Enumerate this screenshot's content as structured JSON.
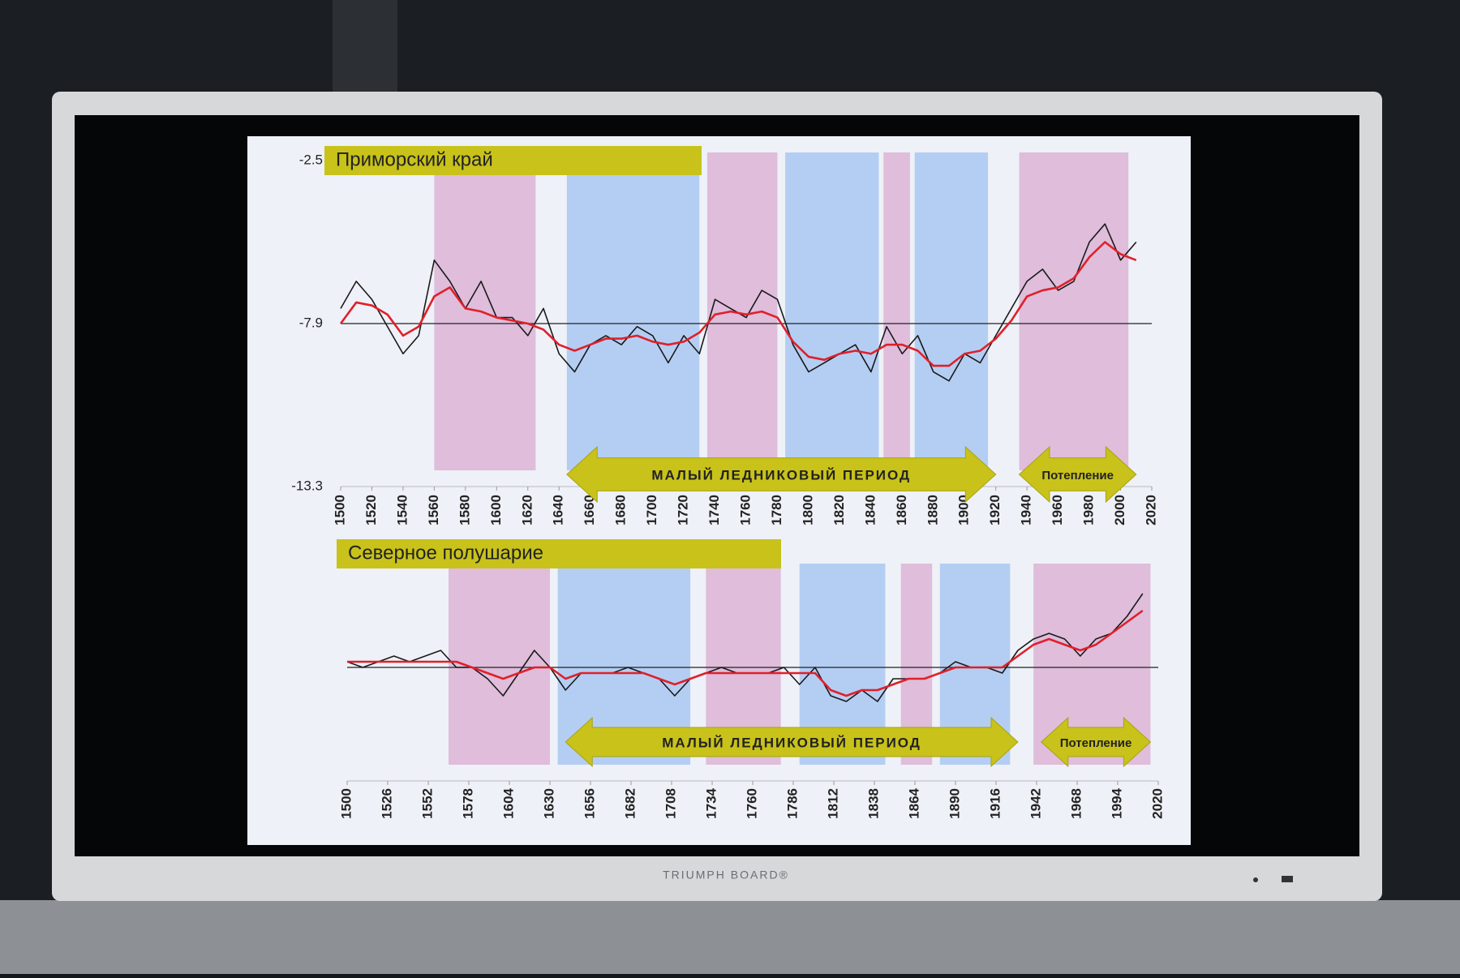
{
  "chart_data": [
    {
      "type": "line",
      "title": "Приморский край",
      "x": [
        1500,
        1510,
        1520,
        1530,
        1540,
        1550,
        1560,
        1570,
        1580,
        1590,
        1600,
        1610,
        1620,
        1630,
        1640,
        1650,
        1660,
        1670,
        1680,
        1690,
        1700,
        1710,
        1720,
        1730,
        1740,
        1750,
        1760,
        1770,
        1780,
        1790,
        1800,
        1810,
        1820,
        1830,
        1840,
        1850,
        1860,
        1870,
        1880,
        1890,
        1900,
        1910,
        1920,
        1930,
        1940,
        1950,
        1960,
        1970,
        1980,
        1990,
        2000,
        2010
      ],
      "series": [
        {
          "color": "#1a1a1a",
          "values": [
            -7.4,
            -6.5,
            -7.1,
            -8.0,
            -8.9,
            -8.3,
            -5.8,
            -6.5,
            -7.4,
            -6.5,
            -7.7,
            -7.7,
            -8.3,
            -7.4,
            -8.9,
            -9.5,
            -8.6,
            -8.3,
            -8.6,
            -8.0,
            -8.3,
            -9.2,
            -8.3,
            -8.9,
            -7.1,
            -7.4,
            -7.7,
            -6.8,
            -7.1,
            -8.6,
            -9.5,
            -9.2,
            -8.9,
            -8.6,
            -9.5,
            -8.0,
            -8.9,
            -8.3,
            -9.5,
            -9.8,
            -8.9,
            -9.2,
            -8.3,
            -7.4,
            -6.5,
            -6.1,
            -6.8,
            -6.5,
            -5.2,
            -4.6,
            -5.8,
            -5.2
          ]
        },
        {
          "color": "#e0202a",
          "values": [
            -7.9,
            -7.2,
            -7.3,
            -7.6,
            -8.3,
            -8.0,
            -7.0,
            -6.7,
            -7.4,
            -7.5,
            -7.7,
            -7.8,
            -7.9,
            -8.1,
            -8.6,
            -8.8,
            -8.6,
            -8.4,
            -8.4,
            -8.3,
            -8.5,
            -8.6,
            -8.5,
            -8.2,
            -7.6,
            -7.5,
            -7.6,
            -7.5,
            -7.7,
            -8.5,
            -9.0,
            -9.1,
            -8.9,
            -8.8,
            -8.9,
            -8.6,
            -8.6,
            -8.8,
            -9.3,
            -9.3,
            -8.9,
            -8.8,
            -8.4,
            -7.8,
            -7.0,
            -6.8,
            -6.7,
            -6.4,
            -5.7,
            -5.2,
            -5.6,
            -5.8
          ]
        }
      ],
      "xlim": [
        1500,
        2020
      ],
      "xticks": [
        1500,
        1520,
        1540,
        1560,
        1580,
        1600,
        1620,
        1640,
        1660,
        1680,
        1700,
        1720,
        1740,
        1760,
        1780,
        1800,
        1820,
        1840,
        1860,
        1880,
        1900,
        1920,
        1940,
        1960,
        1980,
        2000,
        2020
      ],
      "ylim": [
        -13.3,
        -2.5
      ],
      "yticks": [
        -2.5,
        -7.9,
        -13.3
      ],
      "hline": -7.9,
      "bands": [
        {
          "from": 1560,
          "to": 1625,
          "color": "#dcb4d6"
        },
        {
          "from": 1645,
          "to": 1730,
          "color": "#a9c8f2"
        },
        {
          "from": 1735,
          "to": 1780,
          "color": "#dcb4d6"
        },
        {
          "from": 1785,
          "to": 1845,
          "color": "#a9c8f2"
        },
        {
          "from": 1848,
          "to": 1865,
          "color": "#dcb4d6"
        },
        {
          "from": 1868,
          "to": 1915,
          "color": "#a9c8f2"
        },
        {
          "from": 1935,
          "to": 2005,
          "color": "#dcb4d6"
        }
      ],
      "arrows": [
        {
          "from": 1645,
          "to": 1920,
          "label": "МАЛЫЙ ЛЕДНИКОВЫЙ ПЕРИОД"
        },
        {
          "from": 1935,
          "to": 2010,
          "label": "Потепление"
        }
      ]
    },
    {
      "type": "line",
      "title": "Северное полушарие",
      "x": [
        1500,
        1510,
        1520,
        1530,
        1540,
        1550,
        1560,
        1570,
        1580,
        1590,
        1600,
        1610,
        1620,
        1630,
        1640,
        1650,
        1660,
        1670,
        1680,
        1690,
        1700,
        1710,
        1720,
        1730,
        1740,
        1750,
        1760,
        1770,
        1780,
        1790,
        1800,
        1810,
        1820,
        1830,
        1840,
        1850,
        1860,
        1870,
        1880,
        1890,
        1900,
        1910,
        1920,
        1930,
        1940,
        1950,
        1960,
        1970,
        1980,
        1990,
        2000,
        2010
      ],
      "series": [
        {
          "color": "#1a1a1a",
          "values": [
            0.1,
            0.0,
            0.1,
            0.2,
            0.1,
            0.2,
            0.3,
            0.0,
            0.0,
            -0.2,
            -0.5,
            -0.1,
            0.3,
            0.0,
            -0.4,
            -0.1,
            -0.1,
            -0.1,
            0.0,
            -0.1,
            -0.2,
            -0.5,
            -0.2,
            -0.1,
            0.0,
            -0.1,
            -0.1,
            -0.1,
            0.0,
            -0.3,
            0.0,
            -0.5,
            -0.6,
            -0.4,
            -0.6,
            -0.2,
            -0.2,
            -0.2,
            -0.1,
            0.1,
            0.0,
            0.0,
            -0.1,
            0.3,
            0.5,
            0.6,
            0.5,
            0.2,
            0.5,
            0.6,
            0.9,
            1.3
          ]
        },
        {
          "color": "#e0202a",
          "values": [
            0.1,
            0.1,
            0.1,
            0.1,
            0.1,
            0.1,
            0.1,
            0.1,
            0.0,
            -0.1,
            -0.2,
            -0.1,
            0.0,
            0.0,
            -0.2,
            -0.1,
            -0.1,
            -0.1,
            -0.1,
            -0.1,
            -0.2,
            -0.3,
            -0.2,
            -0.1,
            -0.1,
            -0.1,
            -0.1,
            -0.1,
            -0.1,
            -0.1,
            -0.1,
            -0.4,
            -0.5,
            -0.4,
            -0.4,
            -0.3,
            -0.2,
            -0.2,
            -0.1,
            0.0,
            0.0,
            0.0,
            0.0,
            0.2,
            0.4,
            0.5,
            0.4,
            0.3,
            0.4,
            0.6,
            0.8,
            1.0
          ]
        }
      ],
      "xlim": [
        1500,
        2020
      ],
      "xticks": [
        1500,
        1526,
        1552,
        1578,
        1604,
        1630,
        1656,
        1682,
        1708,
        1734,
        1760,
        1786,
        1812,
        1838,
        1864,
        1890,
        1916,
        1942,
        1968,
        1994,
        2020
      ],
      "ylim": [
        -2,
        2
      ],
      "hline": 0,
      "bands": [
        {
          "from": 1565,
          "to": 1630,
          "color": "#dcb4d6"
        },
        {
          "from": 1635,
          "to": 1720,
          "color": "#a9c8f2"
        },
        {
          "from": 1730,
          "to": 1778,
          "color": "#dcb4d6"
        },
        {
          "from": 1790,
          "to": 1845,
          "color": "#a9c8f2"
        },
        {
          "from": 1855,
          "to": 1875,
          "color": "#dcb4d6"
        },
        {
          "from": 1880,
          "to": 1925,
          "color": "#a9c8f2"
        },
        {
          "from": 1940,
          "to": 2015,
          "color": "#dcb4d6"
        }
      ],
      "arrows": [
        {
          "from": 1640,
          "to": 1930,
          "label": "МАЛЫЙ ЛЕДНИКОВЫЙ ПЕРИОД"
        },
        {
          "from": 1945,
          "to": 2015,
          "label": "Потепление"
        }
      ]
    }
  ],
  "monitor": {
    "brand": "TRIUMPH BOARD®"
  }
}
